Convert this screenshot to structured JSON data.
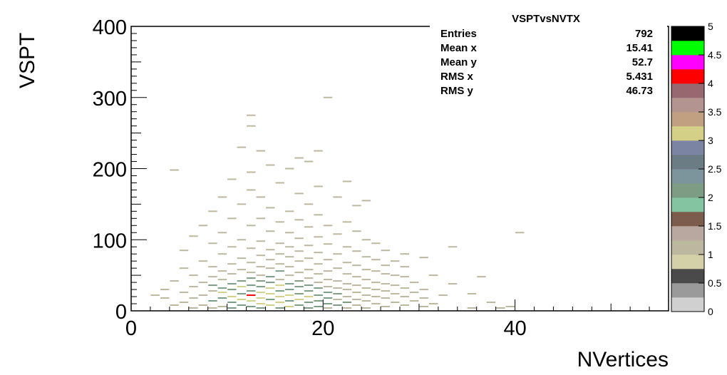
{
  "chart_data": {
    "type": "heatmap",
    "title": "VSPTvsNVTX",
    "xlabel": "NVertices",
    "ylabel": "VSPT",
    "xlim": [
      0,
      56
    ],
    "ylim": [
      0,
      400
    ],
    "x_ticks": [
      "0",
      "20",
      "40"
    ],
    "y_ticks": [
      "0",
      "100",
      "200",
      "300",
      "400"
    ],
    "stats": [
      {
        "label": "Entries",
        "value": "792"
      },
      {
        "label": "Mean x",
        "value": "15.41"
      },
      {
        "label": "Mean y",
        "value": "52.7"
      },
      {
        "label": "RMS x",
        "value": "5.431"
      },
      {
        "label": "RMS y",
        "value": "46.73"
      }
    ],
    "z_ticks": [
      "0",
      "0.5",
      "1",
      "1.5",
      "2",
      "2.5",
      "3",
      "3.5",
      "4",
      "4.5",
      "5"
    ],
    "zlim": [
      0,
      5
    ],
    "palette": [
      "#d0d0d0",
      "#9a9a9a",
      "#4a4a4a",
      "#d4d0a8",
      "#bcb8a0",
      "#b8a8a0",
      "#7c5c4c",
      "#84c4a0",
      "#7c9c84",
      "#7c949c",
      "#6c7c84",
      "#7c84a4",
      "#d4d088",
      "#c0a080",
      "#b49490",
      "#986870",
      "#ff0000",
      "#ff00ff",
      "#00ff00",
      "#000000"
    ],
    "bins": [
      [
        2,
        22,
        1
      ],
      [
        3,
        18,
        1
      ],
      [
        3,
        30,
        1
      ],
      [
        4,
        8,
        1
      ],
      [
        4,
        42,
        1
      ],
      [
        4,
        198,
        1
      ],
      [
        5,
        12,
        1
      ],
      [
        5,
        26,
        1
      ],
      [
        5,
        60,
        1
      ],
      [
        5,
        85,
        1
      ],
      [
        6,
        4,
        1
      ],
      [
        6,
        18,
        1
      ],
      [
        6,
        34,
        1
      ],
      [
        6,
        50,
        1
      ],
      [
        6,
        105,
        1
      ],
      [
        7,
        8,
        1
      ],
      [
        7,
        22,
        1
      ],
      [
        7,
        40,
        1
      ],
      [
        7,
        70,
        1
      ],
      [
        7,
        120,
        1
      ],
      [
        8,
        4,
        1
      ],
      [
        8,
        14,
        2
      ],
      [
        8,
        28,
        1
      ],
      [
        8,
        36,
        2
      ],
      [
        8,
        48,
        1
      ],
      [
        8,
        62,
        1
      ],
      [
        8,
        95,
        1
      ],
      [
        8,
        140,
        1
      ],
      [
        9,
        6,
        1
      ],
      [
        9,
        18,
        2
      ],
      [
        9,
        26,
        3
      ],
      [
        9,
        32,
        2
      ],
      [
        9,
        44,
        1
      ],
      [
        9,
        56,
        1
      ],
      [
        9,
        80,
        1
      ],
      [
        9,
        110,
        1
      ],
      [
        9,
        160,
        1
      ],
      [
        10,
        4,
        2
      ],
      [
        10,
        12,
        2
      ],
      [
        10,
        20,
        3
      ],
      [
        10,
        30,
        2
      ],
      [
        10,
        38,
        2
      ],
      [
        10,
        52,
        1
      ],
      [
        10,
        66,
        1
      ],
      [
        10,
        90,
        1
      ],
      [
        10,
        130,
        1
      ],
      [
        10,
        185,
        1
      ],
      [
        11,
        8,
        2
      ],
      [
        11,
        16,
        3
      ],
      [
        11,
        24,
        2
      ],
      [
        11,
        34,
        3
      ],
      [
        11,
        42,
        2
      ],
      [
        11,
        58,
        1
      ],
      [
        11,
        74,
        1
      ],
      [
        11,
        100,
        1
      ],
      [
        11,
        150,
        1
      ],
      [
        11,
        230,
        1
      ],
      [
        12,
        6,
        2
      ],
      [
        12,
        14,
        3
      ],
      [
        12,
        22,
        4
      ],
      [
        12,
        28,
        2
      ],
      [
        12,
        36,
        2
      ],
      [
        12,
        46,
        2
      ],
      [
        12,
        54,
        1
      ],
      [
        12,
        68,
        1
      ],
      [
        12,
        88,
        1
      ],
      [
        12,
        120,
        1
      ],
      [
        12,
        170,
        1
      ],
      [
        12,
        195,
        1
      ],
      [
        12,
        260,
        1
      ],
      [
        12,
        275,
        1
      ],
      [
        13,
        4,
        2
      ],
      [
        13,
        10,
        3
      ],
      [
        13,
        18,
        3
      ],
      [
        13,
        26,
        3
      ],
      [
        13,
        34,
        2
      ],
      [
        13,
        42,
        2
      ],
      [
        13,
        50,
        1
      ],
      [
        13,
        62,
        1
      ],
      [
        13,
        78,
        1
      ],
      [
        13,
        98,
        1
      ],
      [
        13,
        130,
        1
      ],
      [
        13,
        160,
        1
      ],
      [
        13,
        225,
        1
      ],
      [
        14,
        8,
        3
      ],
      [
        14,
        16,
        2
      ],
      [
        14,
        24,
        3
      ],
      [
        14,
        32,
        3
      ],
      [
        14,
        40,
        2
      ],
      [
        14,
        48,
        2
      ],
      [
        14,
        60,
        1
      ],
      [
        14,
        72,
        1
      ],
      [
        14,
        86,
        1
      ],
      [
        14,
        112,
        1
      ],
      [
        14,
        145,
        1
      ],
      [
        14,
        205,
        1
      ],
      [
        15,
        4,
        2
      ],
      [
        15,
        12,
        3
      ],
      [
        15,
        20,
        3
      ],
      [
        15,
        28,
        2
      ],
      [
        15,
        36,
        3
      ],
      [
        15,
        44,
        1
      ],
      [
        15,
        56,
        2
      ],
      [
        15,
        66,
        1
      ],
      [
        15,
        80,
        1
      ],
      [
        15,
        95,
        1
      ],
      [
        15,
        125,
        1
      ],
      [
        15,
        180,
        1
      ],
      [
        16,
        6,
        3
      ],
      [
        16,
        14,
        2
      ],
      [
        16,
        22,
        3
      ],
      [
        16,
        30,
        2
      ],
      [
        16,
        38,
        2
      ],
      [
        16,
        50,
        1
      ],
      [
        16,
        62,
        1
      ],
      [
        16,
        76,
        1
      ],
      [
        16,
        90,
        1
      ],
      [
        16,
        110,
        1
      ],
      [
        16,
        140,
        1
      ],
      [
        16,
        200,
        1
      ],
      [
        17,
        8,
        2
      ],
      [
        17,
        16,
        3
      ],
      [
        17,
        24,
        2
      ],
      [
        17,
        34,
        2
      ],
      [
        17,
        42,
        2
      ],
      [
        17,
        54,
        1
      ],
      [
        17,
        70,
        1
      ],
      [
        17,
        84,
        1
      ],
      [
        17,
        102,
        1
      ],
      [
        17,
        128,
        1
      ],
      [
        17,
        165,
        1
      ],
      [
        17,
        215,
        1
      ],
      [
        18,
        4,
        2
      ],
      [
        18,
        12,
        2
      ],
      [
        18,
        20,
        3
      ],
      [
        18,
        28,
        2
      ],
      [
        18,
        36,
        2
      ],
      [
        18,
        46,
        1
      ],
      [
        18,
        58,
        1
      ],
      [
        18,
        74,
        1
      ],
      [
        18,
        92,
        1
      ],
      [
        18,
        118,
        1
      ],
      [
        18,
        150,
        1
      ],
      [
        18,
        210,
        1
      ],
      [
        19,
        6,
        2
      ],
      [
        19,
        14,
        2
      ],
      [
        19,
        22,
        2
      ],
      [
        19,
        32,
        2
      ],
      [
        19,
        40,
        1
      ],
      [
        19,
        52,
        1
      ],
      [
        19,
        66,
        1
      ],
      [
        19,
        82,
        1
      ],
      [
        19,
        104,
        1
      ],
      [
        19,
        135,
        1
      ],
      [
        19,
        175,
        1
      ],
      [
        19,
        225,
        1
      ],
      [
        20,
        4,
        1
      ],
      [
        20,
        10,
        2
      ],
      [
        20,
        18,
        2
      ],
      [
        20,
        26,
        2
      ],
      [
        20,
        34,
        1
      ],
      [
        20,
        44,
        1
      ],
      [
        20,
        56,
        1
      ],
      [
        20,
        72,
        1
      ],
      [
        20,
        94,
        1
      ],
      [
        20,
        120,
        1
      ],
      [
        20,
        300,
        1
      ],
      [
        21,
        8,
        2
      ],
      [
        21,
        16,
        1
      ],
      [
        21,
        24,
        2
      ],
      [
        21,
        32,
        1
      ],
      [
        21,
        42,
        1
      ],
      [
        21,
        60,
        1
      ],
      [
        21,
        80,
        1
      ],
      [
        21,
        108,
        1
      ],
      [
        21,
        160,
        1
      ],
      [
        22,
        4,
        1
      ],
      [
        22,
        12,
        2
      ],
      [
        22,
        20,
        1
      ],
      [
        22,
        30,
        1
      ],
      [
        22,
        38,
        1
      ],
      [
        22,
        52,
        1
      ],
      [
        22,
        68,
        1
      ],
      [
        22,
        90,
        1
      ],
      [
        22,
        125,
        1
      ],
      [
        22,
        182,
        1
      ],
      [
        23,
        8,
        1
      ],
      [
        23,
        16,
        1
      ],
      [
        23,
        26,
        1
      ],
      [
        23,
        36,
        1
      ],
      [
        23,
        48,
        1
      ],
      [
        23,
        64,
        1
      ],
      [
        23,
        84,
        1
      ],
      [
        23,
        112,
        1
      ],
      [
        23,
        148,
        1
      ],
      [
        24,
        4,
        1
      ],
      [
        24,
        14,
        1
      ],
      [
        24,
        22,
        1
      ],
      [
        24,
        32,
        1
      ],
      [
        24,
        44,
        1
      ],
      [
        24,
        58,
        1
      ],
      [
        24,
        76,
        1
      ],
      [
        24,
        100,
        1
      ],
      [
        24,
        155,
        1
      ],
      [
        25,
        10,
        1
      ],
      [
        25,
        20,
        1
      ],
      [
        25,
        30,
        1
      ],
      [
        25,
        40,
        1
      ],
      [
        25,
        56,
        1
      ],
      [
        25,
        72,
        1
      ],
      [
        25,
        95,
        1
      ],
      [
        26,
        6,
        1
      ],
      [
        26,
        18,
        1
      ],
      [
        26,
        28,
        1
      ],
      [
        26,
        38,
        1
      ],
      [
        26,
        52,
        1
      ],
      [
        26,
        64,
        1
      ],
      [
        26,
        85,
        1
      ],
      [
        27,
        12,
        1
      ],
      [
        27,
        24,
        1
      ],
      [
        27,
        36,
        1
      ],
      [
        27,
        50,
        1
      ],
      [
        27,
        70,
        1
      ],
      [
        28,
        8,
        1
      ],
      [
        28,
        20,
        1
      ],
      [
        28,
        32,
        1
      ],
      [
        28,
        48,
        1
      ],
      [
        28,
        62,
        1
      ],
      [
        28,
        80,
        1
      ],
      [
        29,
        14,
        1
      ],
      [
        29,
        26,
        1
      ],
      [
        29,
        40,
        1
      ],
      [
        30,
        6,
        1
      ],
      [
        30,
        18,
        1
      ],
      [
        30,
        30,
        1
      ],
      [
        30,
        75,
        1
      ],
      [
        31,
        10,
        1
      ],
      [
        31,
        50,
        1
      ],
      [
        32,
        22,
        1
      ],
      [
        33,
        38,
        1
      ],
      [
        33,
        90,
        1
      ],
      [
        35,
        4,
        1
      ],
      [
        35,
        24,
        1
      ],
      [
        36,
        48,
        1
      ],
      [
        37,
        12,
        1
      ],
      [
        38,
        4,
        1
      ],
      [
        39,
        6,
        1
      ],
      [
        40,
        110,
        1
      ]
    ]
  }
}
